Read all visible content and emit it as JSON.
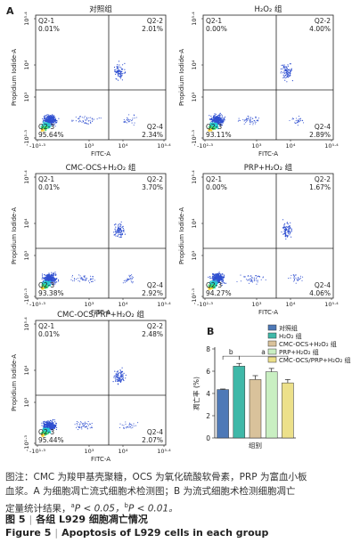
{
  "panel_labels": {
    "a": "A",
    "b": "B"
  },
  "flow_plots": [
    {
      "title": "对照组",
      "q1": "Q2-1",
      "q1v": "0.01%",
      "q2": "Q2-2",
      "q2v": "2.01%",
      "q3": "Q2-3",
      "q3v": "95.64%",
      "q4": "Q2-4",
      "q4v": "2.34%"
    },
    {
      "title": "H₂O₂ 组",
      "q1": "Q2-1",
      "q1v": "0.00%",
      "q2": "Q2-2",
      "q2v": "4.00%",
      "q3": "Q2-3",
      "q3v": "93.11%",
      "q4": "Q2-4",
      "q4v": "2.89%"
    },
    {
      "title": "CMC-OCS+H₂O₂ 组",
      "q1": "Q2-1",
      "q1v": "0.01%",
      "q2": "Q2-2",
      "q2v": "3.70%",
      "q3": "Q2-3",
      "q3v": "93.38%",
      "q4": "Q2-4",
      "q4v": "2.92%"
    },
    {
      "title": "PRP+H₂O₂ 组",
      "q1": "Q2-1",
      "q1v": "0.00%",
      "q2": "Q2-2",
      "q2v": "1.67%",
      "q3": "Q2-3",
      "q3v": "94.27%",
      "q4": "Q2-4",
      "q4v": "4.06%"
    },
    {
      "title": "CMC-OCS/PRP+H₂O₂ 组",
      "q1": "Q2-1",
      "q1v": "0.01%",
      "q2": "Q2-2",
      "q2v": "2.48%",
      "q3": "Q2-3",
      "q3v": "95.44%",
      "q4": "Q2-4",
      "q4v": "2.07%"
    }
  ],
  "axis": {
    "x_label": "FITC-A",
    "y_label": "Propidium Iodide-A",
    "x_ticks": [
      "-10¹·³",
      "10³",
      "10⁴",
      "10⁵·⁴"
    ],
    "y_ticks": [
      "-10¹·³",
      "10³",
      "10⁴",
      "10⁵·⁴"
    ]
  },
  "chart_data": {
    "type": "bar",
    "categories": [
      "对照组",
      "H₂O₂ 组",
      "CMC-OCS+H₂O₂ 组",
      "PRP+H₂O₂ 组",
      "CMC-OCS/PRP+H₂O₂ 组"
    ],
    "values": [
      4.35,
      6.45,
      5.25,
      5.95,
      4.95
    ],
    "errors": [
      0.05,
      0.25,
      0.35,
      0.3,
      0.3
    ],
    "colors": [
      "#4e79b7",
      "#3fb8a8",
      "#d9c29b",
      "#c9efc2",
      "#ece08a"
    ],
    "xlabel": "组别",
    "ylabel": "凋亡率 (%)",
    "ylim": [
      0,
      8
    ],
    "yticks": [
      "0",
      "2",
      "4",
      "6",
      "8"
    ],
    "annotations": [
      "b",
      "a"
    ],
    "legend_position": "top-right"
  },
  "caption": {
    "note_line1": "图注：CMC 为羧甲基壳聚糖，OCS 为氧化硫酸软骨素，PRP 为富血小板",
    "note_line2": "血浆。A 为细胞凋亡流式细胞术检测图；B 为流式细胞术检测细胞凋亡",
    "note_line3_pre": "定量统计结果，",
    "sig_a_letter": "a",
    "sig_a_text": "P < 0.05，",
    "sig_b_letter": "b",
    "sig_b_text": "P < 0.01。",
    "fig_cn_label": "图 5",
    "fig_cn_title": "各组 L929 细胞凋亡情况",
    "fig_en_label": "Figure 5",
    "fig_en_title": "Apoptosis of L929 cells in each group"
  }
}
